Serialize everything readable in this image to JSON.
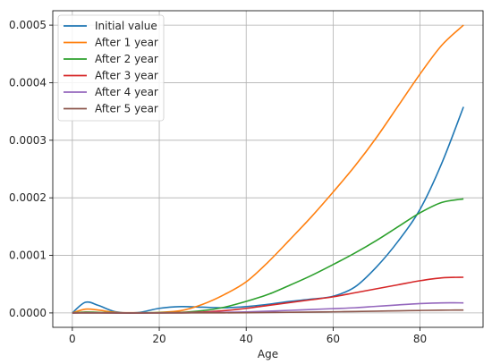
{
  "chart_data": {
    "type": "line",
    "title": "",
    "xlabel": "Age",
    "ylabel": "",
    "xlim": [
      -4.5,
      94.5
    ],
    "ylim": [
      -2.5e-05,
      0.000525
    ],
    "xticks": [
      0,
      20,
      40,
      60,
      80
    ],
    "xtick_labels": [
      "0",
      "20",
      "40",
      "60",
      "80"
    ],
    "yticks": [
      0,
      0.0001,
      0.0002,
      0.0003,
      0.0004,
      0.0005
    ],
    "ytick_labels": [
      "0.0000",
      "0.0001",
      "0.0002",
      "0.0003",
      "0.0004",
      "0.0005"
    ],
    "grid": true,
    "legend_position": "top-left",
    "x": [
      0,
      3,
      6,
      10,
      15,
      20,
      25,
      30,
      35,
      40,
      45,
      50,
      55,
      60,
      65,
      70,
      75,
      80,
      85,
      90
    ],
    "series": [
      {
        "name": "Initial value",
        "color": "#1f77b4",
        "values": [
          0,
          1.85e-05,
          1.3e-05,
          2e-06,
          5e-07,
          8e-06,
          1.1e-05,
          1e-05,
          9e-06,
          1.1e-05,
          1.5e-05,
          2e-05,
          2.4e-05,
          2.9e-05,
          4.5e-05,
          8e-05,
          0.000125,
          0.00018,
          0.00026,
          0.000358
        ]
      },
      {
        "name": "After 1 year",
        "color": "#ff7f0e",
        "values": [
          0,
          6.5e-06,
          5e-06,
          1e-06,
          3e-07,
          1e-06,
          4e-06,
          1.5e-05,
          3.2e-05,
          5.4e-05,
          8.8e-05,
          0.000127,
          0.000167,
          0.00021,
          0.000255,
          0.000305,
          0.00036,
          0.000415,
          0.000465,
          0.0005
        ]
      },
      {
        "name": "After 2 year",
        "color": "#2ca02c",
        "values": [
          0,
          1.5e-06,
          1e-06,
          2e-07,
          1e-07,
          5e-07,
          1e-06,
          4e-06,
          1e-05,
          2e-05,
          3.2e-05,
          4.8e-05,
          6.5e-05,
          8.4e-05,
          0.000104,
          0.000126,
          0.00015,
          0.000174,
          0.000192,
          0.000198
        ]
      },
      {
        "name": "After 3 year",
        "color": "#d62728",
        "values": [
          0,
          5e-07,
          3e-07,
          1e-07,
          0,
          2e-07,
          5e-07,
          1.5e-06,
          4e-06,
          8e-06,
          1.3e-05,
          1.8e-05,
          2.3e-05,
          2.8e-05,
          3.5e-05,
          4.2e-05,
          4.9e-05,
          5.6e-05,
          6.1e-05,
          6.2e-05
        ]
      },
      {
        "name": "After 4 year",
        "color": "#9467bd",
        "values": [
          0,
          1e-07,
          1e-07,
          0,
          0,
          1e-07,
          2e-07,
          5e-07,
          1e-06,
          1.8e-06,
          3e-06,
          4.5e-06,
          6e-06,
          7.5e-06,
          9e-06,
          1.15e-05,
          1.4e-05,
          1.62e-05,
          1.75e-05,
          1.75e-05
        ]
      },
      {
        "name": "After 5 year",
        "color": "#8c564b",
        "values": [
          0,
          0,
          0,
          0,
          0,
          0,
          0,
          1e-07,
          2e-07,
          4e-07,
          7e-07,
          1.1e-06,
          1.5e-06,
          2e-06,
          2.5e-06,
          3e-06,
          3.7e-06,
          4.3e-06,
          4.8e-06,
          5e-06
        ]
      }
    ]
  }
}
